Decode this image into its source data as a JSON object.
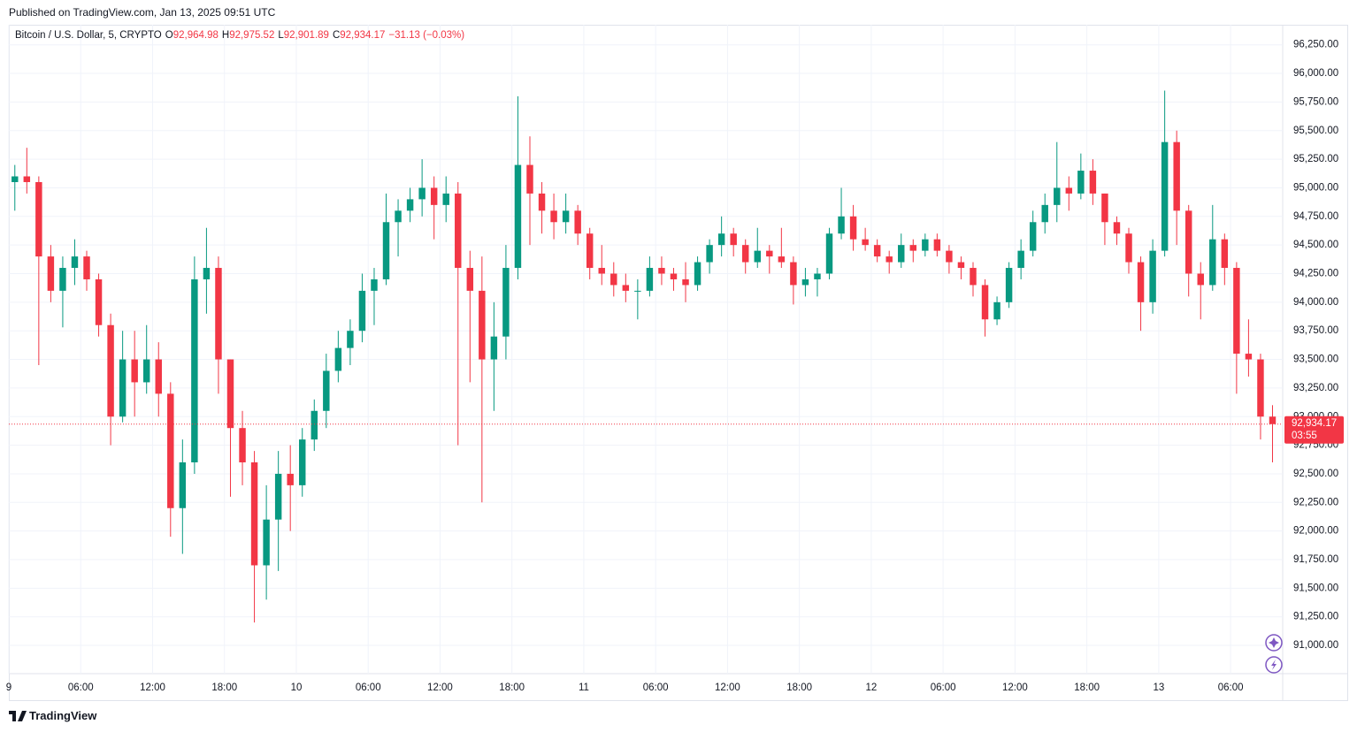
{
  "header": {
    "published": "Published on TradingView.com, Jan 13, 2025 09:51 UTC"
  },
  "footer": {
    "brand": "TradingView"
  },
  "chart_data": {
    "type": "candlestick",
    "symbol": "Bitcoin / U.S. Dollar, 5, CRYPTO",
    "ohlc_legend": [
      {
        "key": "O",
        "value": "92,964.98"
      },
      {
        "key": "H",
        "value": "92,975.52"
      },
      {
        "key": "L",
        "value": "92,901.89"
      },
      {
        "key": "C",
        "value": "92,934.17"
      }
    ],
    "change": "−31.13 (−0.03%)",
    "up_color": "#089981",
    "down_color": "#f23645",
    "x": [
      0,
      1,
      2,
      3,
      4,
      5,
      6,
      7,
      8,
      9,
      10,
      11,
      12,
      13,
      14,
      15,
      16,
      17,
      18,
      19,
      20,
      21,
      22,
      23,
      24,
      25,
      26,
      27,
      28,
      29,
      30,
      31,
      32,
      33,
      34,
      35,
      36,
      37,
      38,
      39,
      40,
      41,
      42,
      43,
      44,
      45,
      46,
      47,
      48,
      49,
      50,
      51,
      52,
      53,
      54,
      55,
      56,
      57,
      58,
      59,
      60,
      61,
      62,
      63,
      64,
      65,
      66,
      67,
      68,
      69,
      70,
      71,
      72,
      73,
      74,
      75,
      76,
      77,
      78,
      79,
      80,
      81,
      82,
      83,
      84,
      85,
      86,
      87,
      88,
      89,
      90,
      91,
      92,
      93,
      94,
      95,
      96,
      97,
      98,
      99,
      100,
      101,
      102,
      103,
      104,
      105
    ],
    "open": [
      95050,
      95100,
      95050,
      94400,
      94100,
      94300,
      94400,
      94200,
      93800,
      93000,
      93500,
      93300,
      93500,
      93200,
      92200,
      92600,
      94200,
      94300,
      93500,
      92900,
      92600,
      91700,
      92100,
      92500,
      92400,
      92800,
      93050,
      93400,
      93600,
      93750,
      94100,
      94200,
      94700,
      94800,
      94900,
      95000,
      94850,
      94950,
      94300,
      94100,
      93500,
      93700,
      94300,
      95200,
      94950,
      94800,
      94700,
      94800,
      94600,
      94300,
      94250,
      94150,
      94100,
      94100,
      94300,
      94250,
      94200,
      94150,
      94350,
      94500,
      94600,
      94500,
      94350,
      94450,
      94400,
      94350,
      94150,
      94200,
      94250,
      94600,
      94750,
      94550,
      94500,
      94400,
      94350,
      94500,
      94450,
      94550,
      94450,
      94350,
      94300,
      94150,
      93850,
      94000,
      94300,
      94450,
      94700,
      94850,
      95000,
      94950,
      95150,
      94950,
      94700,
      94600,
      94350,
      94000,
      94450,
      95400,
      94800,
      94250,
      94150,
      94550,
      94300,
      93550,
      93500,
      93000
    ],
    "high": [
      95200,
      95350,
      95100,
      94500,
      94400,
      94550,
      94450,
      94250,
      93900,
      93750,
      93750,
      93800,
      93650,
      93300,
      92800,
      94400,
      94650,
      94400,
      93500,
      93050,
      92700,
      92400,
      92700,
      92750,
      92900,
      93150,
      93550,
      93750,
      93850,
      94250,
      94300,
      94950,
      94900,
      95000,
      95250,
      95100,
      95100,
      95050,
      94450,
      94400,
      94000,
      94500,
      95800,
      95450,
      95050,
      94950,
      94950,
      94850,
      94650,
      94500,
      94350,
      94250,
      94200,
      94400,
      94400,
      94300,
      94350,
      94400,
      94550,
      94750,
      94650,
      94550,
      94650,
      94500,
      94650,
      94400,
      94300,
      94300,
      94650,
      95000,
      94850,
      94650,
      94550,
      94450,
      94600,
      94550,
      94600,
      94600,
      94500,
      94400,
      94350,
      94200,
      94050,
      94350,
      94550,
      94800,
      94950,
      95400,
      95100,
      95300,
      95250,
      94950,
      94750,
      94650,
      94400,
      94550,
      95850,
      95500,
      94850,
      94350,
      94850,
      94600,
      94350,
      93850,
      93550,
      93100
    ],
    "low": [
      94800,
      94950,
      93450,
      94000,
      93780,
      94150,
      94100,
      93700,
      92750,
      92950,
      93000,
      93200,
      93000,
      91950,
      91800,
      92500,
      93900,
      93200,
      92300,
      92400,
      91200,
      91400,
      91650,
      92000,
      92300,
      92700,
      92900,
      93300,
      93450,
      93650,
      93800,
      94150,
      94400,
      94700,
      94750,
      94550,
      94700,
      92750,
      93300,
      92250,
      93050,
      93500,
      94200,
      94500,
      94600,
      94550,
      94600,
      94500,
      94200,
      94150,
      94050,
      94000,
      93850,
      94050,
      94150,
      94100,
      94000,
      94100,
      94250,
      94400,
      94400,
      94250,
      94300,
      94250,
      94300,
      93980,
      94050,
      94050,
      94200,
      94550,
      94450,
      94450,
      94350,
      94250,
      94300,
      94350,
      94400,
      94400,
      94250,
      94200,
      94050,
      93700,
      93800,
      93950,
      94200,
      94400,
      94600,
      94700,
      94800,
      94900,
      94850,
      94500,
      94500,
      94250,
      93750,
      93900,
      94400,
      94500,
      94050,
      93850,
      94100,
      94150,
      93200,
      93350,
      92800,
      92600
    ],
    "close": [
      95100,
      95050,
      94400,
      94100,
      94300,
      94400,
      94200,
      93800,
      93000,
      93500,
      93300,
      93500,
      93200,
      92200,
      92600,
      94200,
      94300,
      93500,
      92900,
      92600,
      91700,
      92100,
      92500,
      92400,
      92800,
      93050,
      93400,
      93600,
      93750,
      94100,
      94200,
      94700,
      94800,
      94900,
      95000,
      94850,
      94950,
      94300,
      94100,
      93500,
      93700,
      94300,
      95200,
      94950,
      94800,
      94700,
      94800,
      94600,
      94300,
      94250,
      94150,
      94100,
      94100,
      94300,
      94250,
      94200,
      94150,
      94350,
      94500,
      94600,
      94500,
      94350,
      94450,
      94400,
      94350,
      94150,
      94200,
      94250,
      94600,
      94750,
      94550,
      94500,
      94400,
      94350,
      94500,
      94450,
      94550,
      94450,
      94350,
      94300,
      94150,
      93850,
      94000,
      94300,
      94450,
      94700,
      94850,
      95000,
      94950,
      95150,
      94950,
      94700,
      94600,
      94350,
      94000,
      94450,
      95400,
      94800,
      94250,
      94150,
      94550,
      94300,
      93550,
      93500,
      93000,
      92934.17
    ],
    "xlim": [
      0,
      106.35
    ],
    "ylim": [
      90753,
      96410
    ],
    "xticks": [
      {
        "value": 0,
        "label": "9"
      },
      {
        "value": 6,
        "label": "06:00"
      },
      {
        "value": 12,
        "label": "12:00"
      },
      {
        "value": 18,
        "label": "18:00"
      },
      {
        "value": 24,
        "label": "10"
      },
      {
        "value": 30,
        "label": "06:00"
      },
      {
        "value": 36,
        "label": "12:00"
      },
      {
        "value": 42,
        "label": "18:00"
      },
      {
        "value": 48,
        "label": "11"
      },
      {
        "value": 54,
        "label": "06:00"
      },
      {
        "value": 60,
        "label": "12:00"
      },
      {
        "value": 66,
        "label": "18:00"
      },
      {
        "value": 72,
        "label": "12"
      },
      {
        "value": 78,
        "label": "06:00"
      },
      {
        "value": 84,
        "label": "12:00"
      },
      {
        "value": 90,
        "label": "18:00"
      },
      {
        "value": 96,
        "label": "13"
      },
      {
        "value": 102,
        "label": "06:00"
      }
    ],
    "yticks": [
      {
        "value": 91000,
        "label": "91,000.00"
      },
      {
        "value": 91250,
        "label": "91,250.00"
      },
      {
        "value": 91500,
        "label": "91,500.00"
      },
      {
        "value": 91750,
        "label": "91,750.00"
      },
      {
        "value": 92000,
        "label": "92,000.00"
      },
      {
        "value": 92250,
        "label": "92,250.00"
      },
      {
        "value": 92500,
        "label": "92,500.00"
      },
      {
        "value": 92750,
        "label": "92,750.00"
      },
      {
        "value": 93000,
        "label": "93,000.00"
      },
      {
        "value": 93250,
        "label": "93,250.00"
      },
      {
        "value": 93500,
        "label": "93,500.00"
      },
      {
        "value": 93750,
        "label": "93,750.00"
      },
      {
        "value": 94000,
        "label": "94,000.00"
      },
      {
        "value": 94250,
        "label": "94,250.00"
      },
      {
        "value": 94500,
        "label": "94,500.00"
      },
      {
        "value": 94750,
        "label": "94,750.00"
      },
      {
        "value": 95000,
        "label": "95,000.00"
      },
      {
        "value": 95250,
        "label": "95,250.00"
      },
      {
        "value": 95500,
        "label": "95,500.00"
      },
      {
        "value": 95750,
        "label": "95,750.00"
      },
      {
        "value": 96000,
        "label": "96,000.00"
      },
      {
        "value": 96250,
        "label": "96,250.00"
      }
    ],
    "grid": true,
    "last_price": {
      "value": 92934.17,
      "label": "92,934.17",
      "countdown": "03:55"
    }
  }
}
